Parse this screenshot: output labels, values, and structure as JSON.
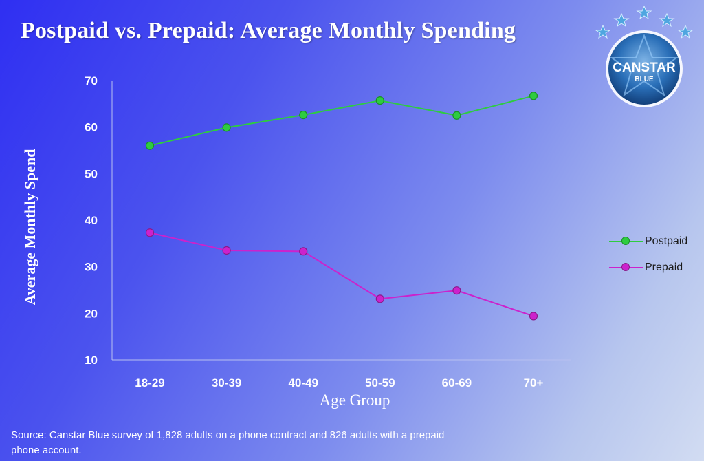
{
  "title": "Postpaid vs. Prepaid: Average Monthly Spending",
  "source": "Source: Canstar Blue survey of 1,828 adults on a phone contract and 826 adults with a prepaid phone account.",
  "logo": {
    "line1": "CANSTAR",
    "line2": "BLUE"
  },
  "colors": {
    "postpaid": "#2ecc40",
    "prepaid": "#cc22cc",
    "axis": "#b8c0f0",
    "text": "#ffffff"
  },
  "chart_data": {
    "type": "line",
    "title": "Postpaid vs. Prepaid: Average Monthly Spending",
    "xlabel": "Age Group",
    "ylabel": "Average Monthly Spend",
    "categories": [
      "18-29",
      "30-39",
      "40-49",
      "50-59",
      "60-69",
      "70+"
    ],
    "ylim": [
      10,
      70
    ],
    "yticks": [
      10,
      20,
      30,
      40,
      50,
      60,
      70
    ],
    "grid": false,
    "legend_position": "right",
    "series": [
      {
        "name": "Postpaid",
        "values": [
          56.0,
          59.9,
          62.6,
          65.7,
          62.5,
          66.7
        ]
      },
      {
        "name": "Prepaid",
        "values": [
          37.3,
          33.5,
          33.3,
          23.1,
          24.9,
          19.4
        ]
      }
    ]
  }
}
